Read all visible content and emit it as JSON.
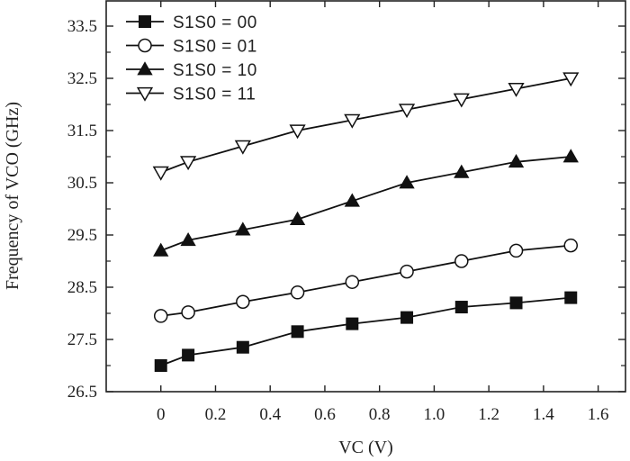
{
  "chart_data": {
    "type": "line",
    "xlabel": "VC (V)",
    "ylabel": "Frequency of VCO (GHz)",
    "xlim": [
      -0.2,
      1.7
    ],
    "ylim": [
      26.5,
      34.0
    ],
    "xticks": [
      0,
      0.2,
      0.4,
      0.6,
      0.8,
      1.0,
      1.2,
      1.4,
      1.6
    ],
    "xtick_labels": [
      "0",
      "0.2",
      "0.4",
      "0.6",
      "0.8",
      "1.0",
      "1.2",
      "1.4",
      "1.6"
    ],
    "yticks": [
      26.5,
      27.5,
      28.5,
      29.5,
      30.5,
      31.5,
      32.5,
      33.5
    ],
    "ytick_labels": [
      "26.5",
      "27.5",
      "28.5",
      "29.5",
      "30.5",
      "31.5",
      "32.5",
      "33.5"
    ],
    "x": [
      0,
      0.1,
      0.3,
      0.5,
      0.7,
      0.9,
      1.1,
      1.3,
      1.5
    ],
    "legend_position": "top-left",
    "grid": false,
    "series": [
      {
        "name": "S1S0 = 00",
        "marker": "square-filled",
        "values": [
          27.0,
          27.2,
          27.35,
          27.65,
          27.8,
          27.92,
          28.12,
          28.2,
          28.3
        ]
      },
      {
        "name": "S1S0 = 01",
        "marker": "circle-open",
        "values": [
          27.95,
          28.02,
          28.22,
          28.4,
          28.6,
          28.8,
          29.0,
          29.2,
          29.3
        ]
      },
      {
        "name": "S1S0 = 10",
        "marker": "triangle-up-filled",
        "values": [
          29.2,
          29.4,
          29.6,
          29.8,
          30.15,
          30.5,
          30.7,
          30.9,
          31.0
        ]
      },
      {
        "name": "S1S0 = 11",
        "marker": "triangle-down-open",
        "values": [
          30.7,
          30.9,
          31.2,
          31.5,
          31.7,
          31.9,
          32.1,
          32.3,
          32.5
        ]
      }
    ]
  }
}
